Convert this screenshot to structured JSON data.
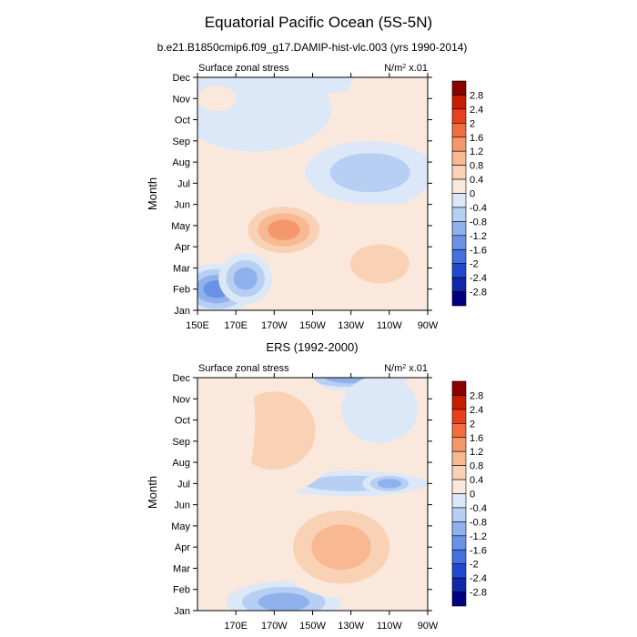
{
  "figure": {
    "title": "Equatorial Pacific Ocean (5S-5N)",
    "subtitle": "b.e21.B1850cmip6.f09_g17.DAMIP-hist-vlc.003 (yrs 1990-2014)"
  },
  "colorbar": {
    "labels": [
      "2.8",
      "2.4",
      "2",
      "1.6",
      "1.2",
      "0.8",
      "0.4",
      "0",
      "-0.4",
      "-0.8",
      "-1.2",
      "-1.6",
      "-2",
      "-2.4",
      "-2.8"
    ],
    "colors": [
      "#8b0000",
      "#c81e00",
      "#e8401c",
      "#f06e3c",
      "#f4986c",
      "#f7b892",
      "#f9d2b6",
      "#fbe8dc",
      "#dce8f8",
      "#b6cff2",
      "#8fb1ec",
      "#6a92e6",
      "#4570df",
      "#2149cf",
      "#1028a8",
      "#000080"
    ]
  },
  "chart_data": [
    {
      "type": "heatmap",
      "title": "",
      "left_label": "Surface zonal stress",
      "right_label": "N/m",
      "right_label_sup": "2",
      "right_label_tail": " x.01",
      "ylabel": "Month",
      "xlabel": "",
      "bottom_title": "ERS (1992-2000)",
      "x_ticks": [
        "150E",
        "170E",
        "170W",
        "150W",
        "130W",
        "110W",
        "90W"
      ],
      "y_ticks": [
        "Jan",
        "Feb",
        "Mar",
        "Apr",
        "May",
        "Jun",
        "Jul",
        "Aug",
        "Sep",
        "Oct",
        "Nov",
        "Dec"
      ],
      "x_lon": [
        150,
        170,
        190,
        210,
        230,
        250,
        270
      ],
      "field": [
        {
          "lon": 160,
          "month": 2,
          "value": -1.6,
          "w": 20,
          "h": 1.2
        },
        {
          "lon": 175,
          "month": 2.5,
          "value": -1.0,
          "w": 14,
          "h": 1.2
        },
        {
          "lon": 200,
          "month": 4.7,
          "value": 2.2,
          "w": 18,
          "h": 1.0
        },
        {
          "lon": 195,
          "month": 4.8,
          "value": 1.5,
          "w": 24,
          "h": 1.4
        },
        {
          "lon": 245,
          "month": 3.2,
          "value": 0.9,
          "w": 25,
          "h": 1.5
        },
        {
          "lon": 252,
          "month": 7,
          "value": -1.8,
          "w": 16,
          "h": 1.0
        },
        {
          "lon": 240,
          "month": 7.5,
          "value": -0.9,
          "w": 34,
          "h": 1.5
        },
        {
          "lon": 180,
          "month": 10.5,
          "value": -0.3,
          "w": 40,
          "h": 2.0
        },
        {
          "lon": 210,
          "month": 12,
          "value": -0.5,
          "w": 30,
          "h": 0.8
        },
        {
          "lon": 160,
          "month": 11,
          "value": 0.6,
          "w": 10,
          "h": 0.6
        },
        {
          "lon": 258,
          "month": 11,
          "value": 0.6,
          "w": 30,
          "h": 2.0
        }
      ]
    },
    {
      "type": "heatmap",
      "title": "",
      "left_label": "Surface zonal stress",
      "right_label": "N/m",
      "right_label_sup": "2",
      "right_label_tail": " x.01",
      "ylabel": "Month",
      "xlabel": "",
      "x_ticks": [
        "170E",
        "170W",
        "150W",
        "130W",
        "110W",
        "90W"
      ],
      "y_ticks": [
        "Jan",
        "Feb",
        "Mar",
        "Apr",
        "May",
        "Jun",
        "Jul",
        "Aug",
        "Sep",
        "Oct",
        "Nov",
        "Dec"
      ],
      "x_lon": [
        170,
        190,
        210,
        230,
        250,
        270
      ],
      "field": [
        {
          "lon": 195,
          "month": 1.4,
          "value": -1.4,
          "w": 30,
          "h": 1.0
        },
        {
          "lon": 215,
          "month": 4.7,
          "value": 2.0,
          "w": 14,
          "h": 1.0
        },
        {
          "lon": 235,
          "month": 3.2,
          "value": 2.0,
          "w": 18,
          "h": 1.0
        },
        {
          "lon": 225,
          "month": 4.0,
          "value": 1.3,
          "w": 35,
          "h": 2.4
        },
        {
          "lon": 230,
          "month": 7,
          "value": -0.8,
          "w": 40,
          "h": 0.6
        },
        {
          "lon": 250,
          "month": 7,
          "value": -1.1,
          "w": 14,
          "h": 0.5
        },
        {
          "lon": 230,
          "month": 12,
          "value": -1.0,
          "w": 30,
          "h": 0.6
        },
        {
          "lon": 245,
          "month": 10.5,
          "value": -0.5,
          "w": 20,
          "h": 1.6
        },
        {
          "lon": 190,
          "month": 9.5,
          "value": 0.7,
          "w": 35,
          "h": 3.0
        },
        {
          "lon": 165,
          "month": 10,
          "value": 0.5,
          "w": 15,
          "h": 4.0
        }
      ]
    }
  ]
}
